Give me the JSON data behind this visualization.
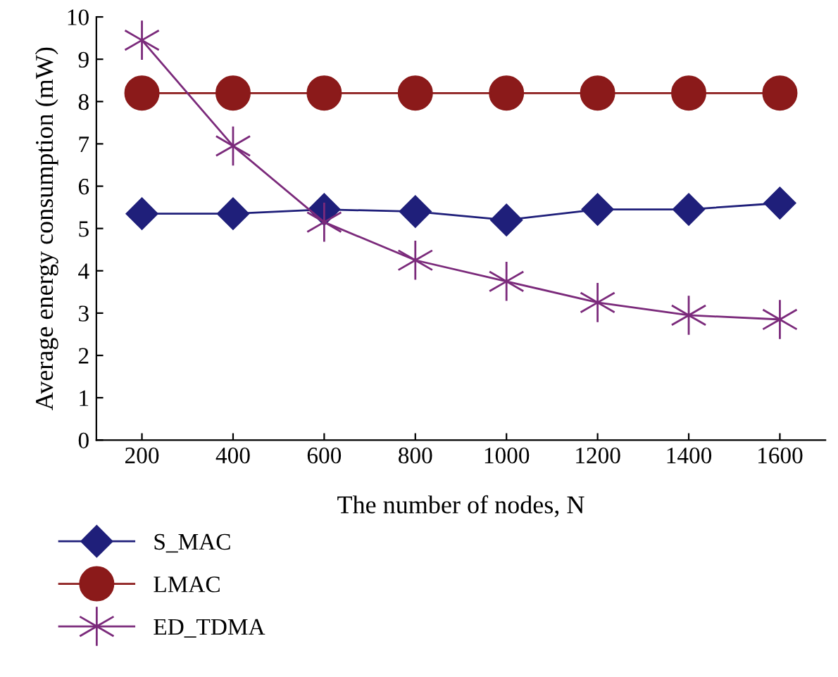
{
  "chart_data": {
    "type": "line",
    "xlabel": "The number of nodes, N",
    "ylabel": "Average energy consumption (mW)",
    "categories": [
      "200",
      "400",
      "600",
      "800",
      "1000",
      "1200",
      "1400",
      "1600"
    ],
    "series": [
      {
        "name": "S_MAC",
        "color": "#1f1f7a",
        "marker": "diamond",
        "values": [
          5.35,
          5.35,
          5.45,
          5.4,
          5.2,
          5.45,
          5.45,
          5.6
        ]
      },
      {
        "name": "LMAC",
        "color": "#8b1a1a",
        "marker": "circle",
        "values": [
          8.2,
          8.2,
          8.2,
          8.2,
          8.2,
          8.2,
          8.2,
          8.2
        ]
      },
      {
        "name": "ED_TDMA",
        "color": "#7b2a7b",
        "marker": "cross",
        "values": [
          9.45,
          6.95,
          5.15,
          4.25,
          3.75,
          3.25,
          2.95,
          2.85
        ]
      }
    ],
    "ylim": [
      0,
      10
    ],
    "yticks": [
      0,
      1,
      2,
      3,
      4,
      5,
      6,
      7,
      8,
      9,
      10
    ],
    "grid": false,
    "legend": "bottom left"
  }
}
